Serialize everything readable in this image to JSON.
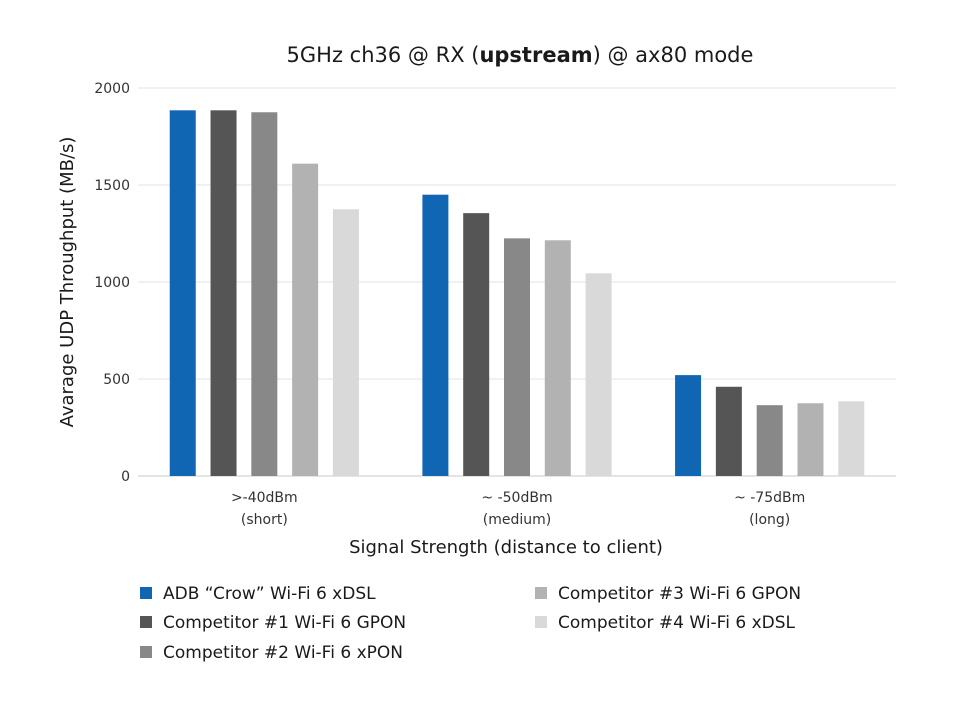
{
  "chart_data": {
    "type": "bar",
    "title_parts": {
      "before": "5GHz ch36 @ RX (",
      "bold": "upstream",
      "after": ") @ ax80 mode"
    },
    "ylabel": "Avarage UDP Throughput (MB/s)",
    "xlabel": "Signal Strength (distance to client)",
    "ylim": [
      0,
      2000
    ],
    "yticks": [
      0,
      500,
      1000,
      1500,
      2000
    ],
    "grid": true,
    "legend_position": "bottom",
    "categories": [
      {
        "line1": ">-40dBm",
        "line2": "(short)"
      },
      {
        "line1": "~ -50dBm",
        "line2": "(medium)"
      },
      {
        "line1": "~ -75dBm",
        "line2": "(long)"
      }
    ],
    "series": [
      {
        "name": "ADB “Crow” Wi-Fi 6 xDSL",
        "color": "#1166b3",
        "values": [
          1885,
          1450,
          520
        ]
      },
      {
        "name": "Competitor #1 Wi-Fi 6 GPON",
        "color": "#555555",
        "values": [
          1885,
          1355,
          460
        ]
      },
      {
        "name": "Competitor #2 Wi-Fi 6 xPON",
        "color": "#888888",
        "values": [
          1875,
          1225,
          365
        ]
      },
      {
        "name": "Competitor #3 Wi-Fi 6 GPON",
        "color": "#b2b2b2",
        "values": [
          1610,
          1215,
          375
        ]
      },
      {
        "name": "Competitor #4 Wi-Fi 6 xDSL",
        "color": "#d9d9d9",
        "values": [
          1375,
          1045,
          385
        ]
      }
    ]
  }
}
